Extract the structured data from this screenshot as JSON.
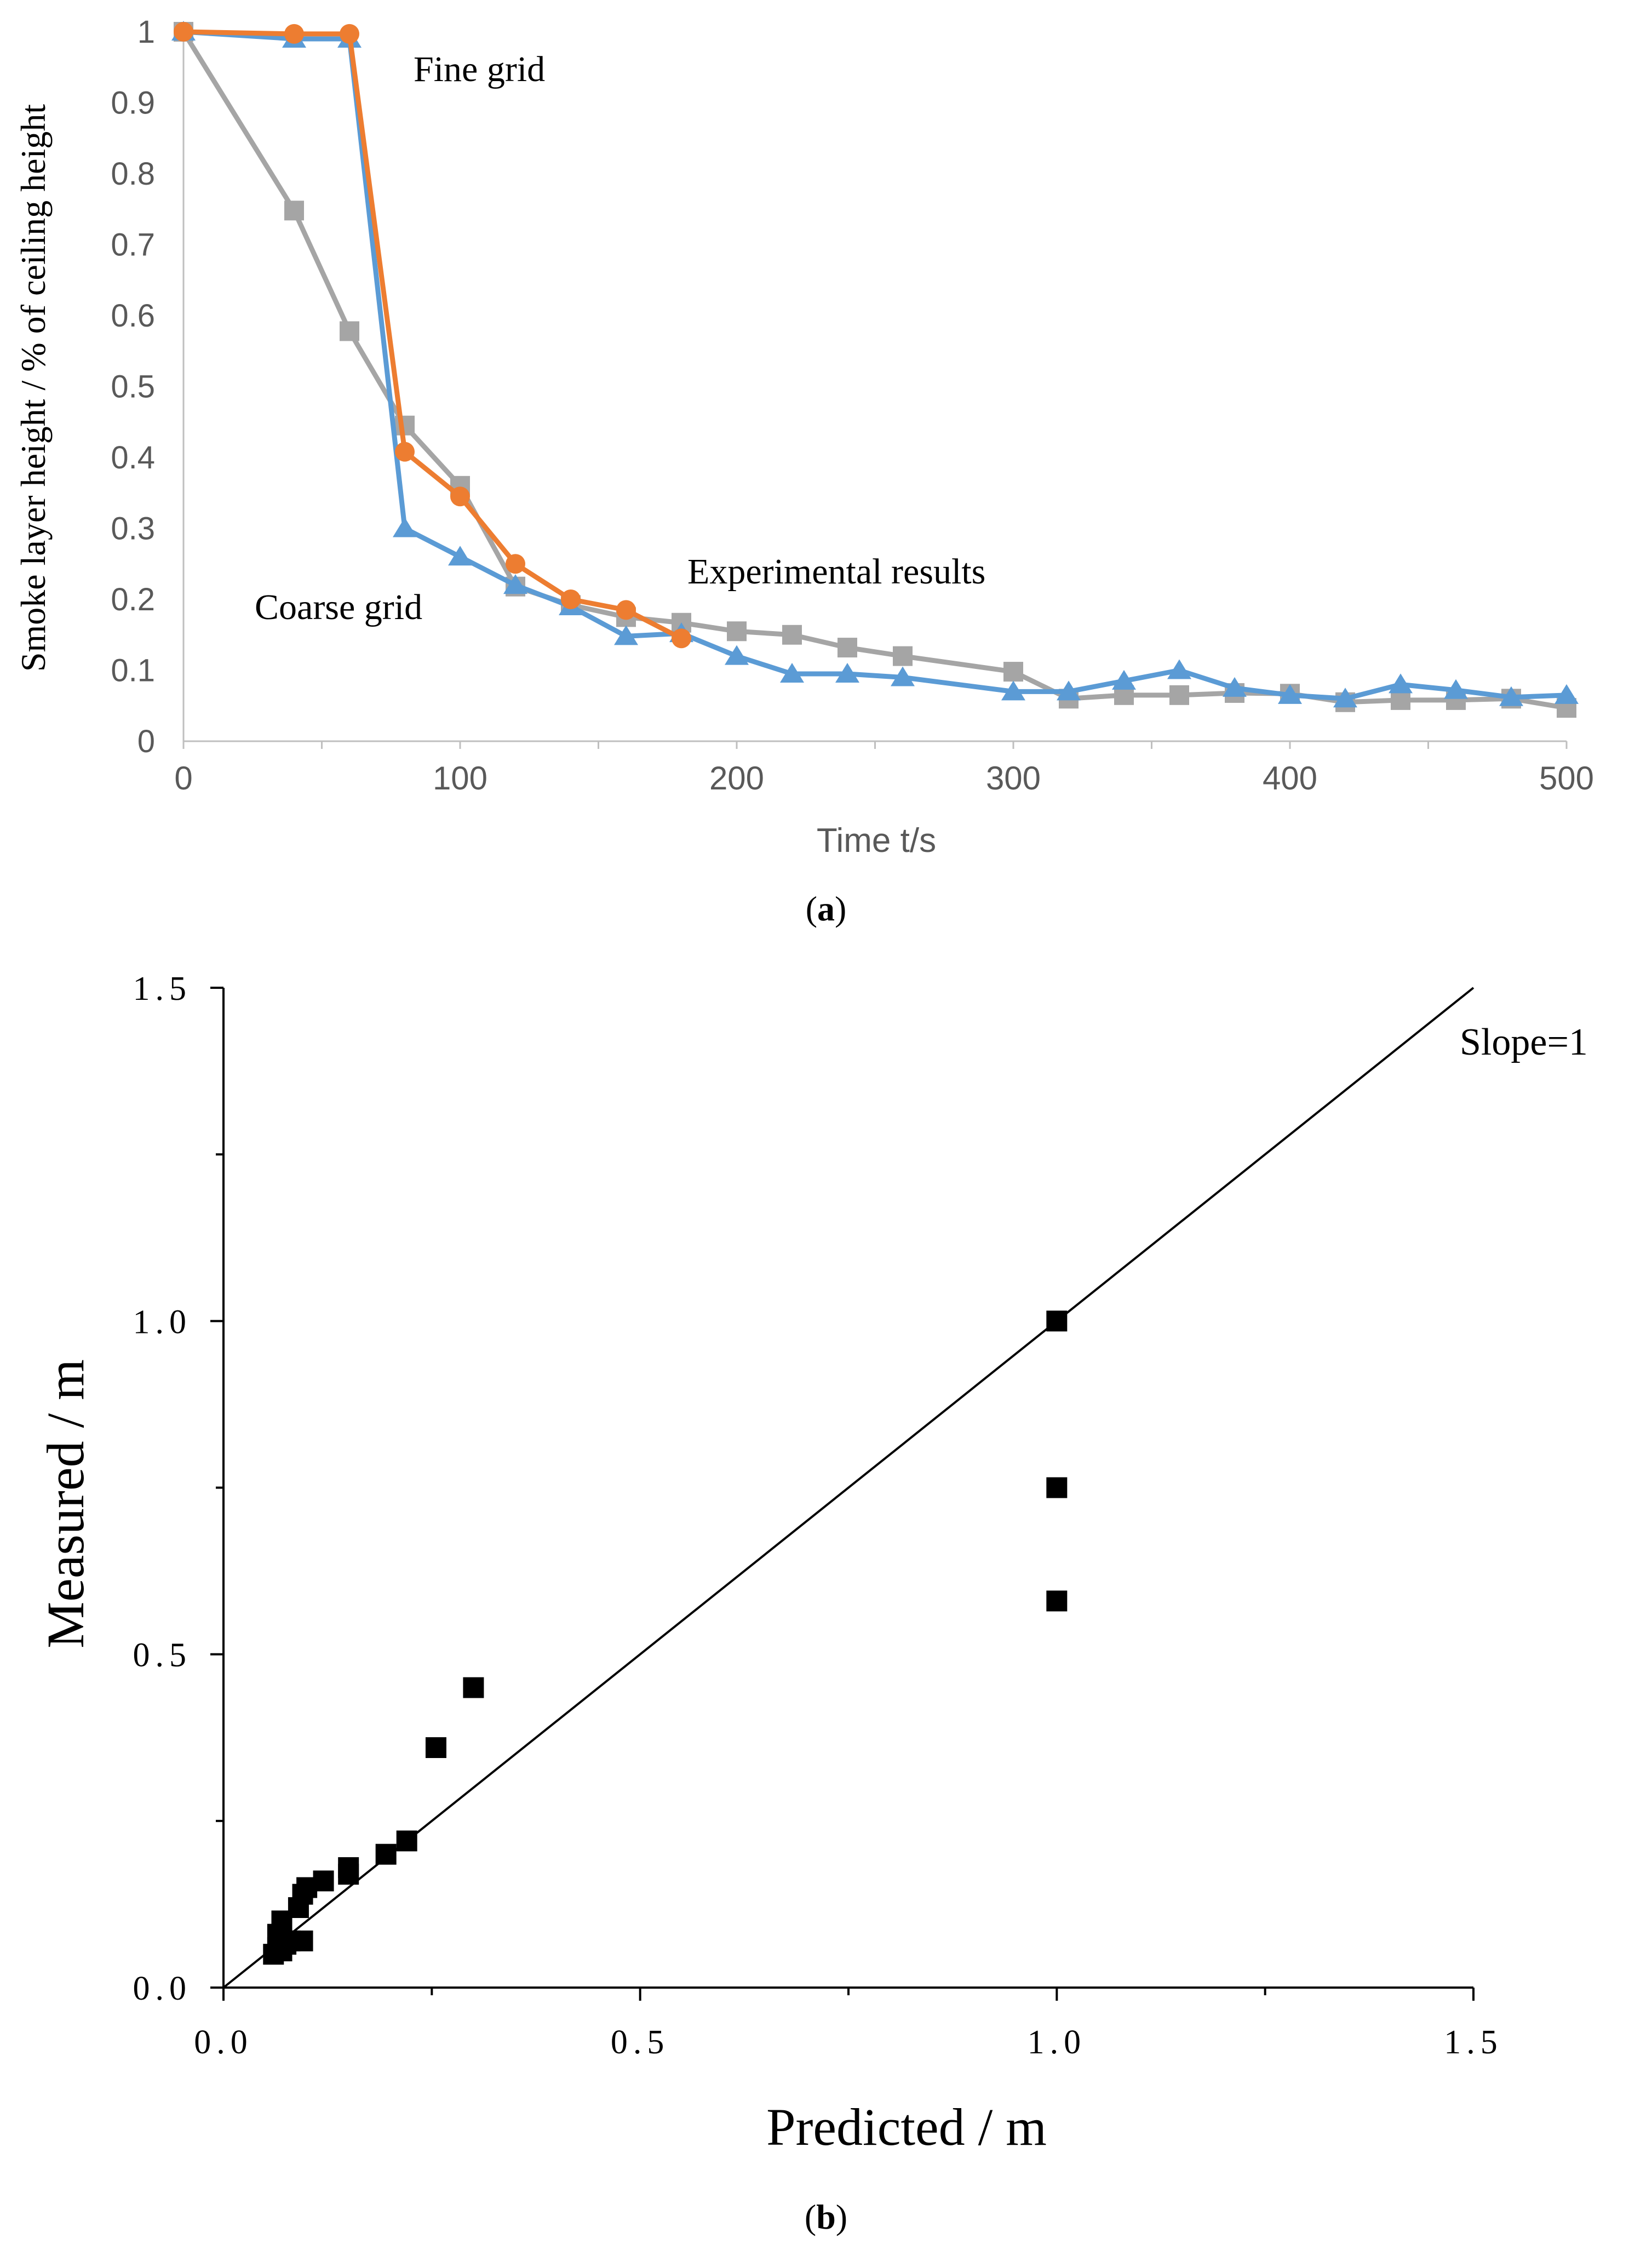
{
  "chart_data": [
    {
      "type": "line",
      "panel_label": "a",
      "xlabel": "Time t/s",
      "ylabel": "Smoke layer height / % of ceiling height",
      "xlim": [
        0,
        500
      ],
      "ylim": [
        0,
        1
      ],
      "xticks": [
        0,
        100,
        200,
        300,
        400,
        500
      ],
      "yticks": [
        0,
        0.1,
        0.2,
        0.3,
        0.4,
        0.5,
        0.6,
        0.7,
        0.8,
        0.9,
        1
      ],
      "grid": false,
      "annotations": [
        "Fine grid",
        "Coarse grid",
        "Experimental results"
      ],
      "series": [
        {
          "name": "Fine grid",
          "color": "#ED7D31",
          "marker": "circle",
          "x": [
            0,
            40,
            60,
            80,
            100,
            120,
            140,
            160,
            180
          ],
          "y": [
            1.0,
            0.997,
            0.997,
            0.408,
            0.345,
            0.25,
            0.2,
            0.185,
            0.145
          ]
        },
        {
          "name": "Coarse grid",
          "color": "#5B9BD5",
          "marker": "triangle",
          "x": [
            0,
            40,
            60,
            80,
            100,
            120,
            140,
            160,
            180,
            200,
            220,
            240,
            260,
            300,
            320,
            340,
            360,
            380,
            400,
            420,
            440,
            460,
            480,
            500
          ],
          "y": [
            1.0,
            0.99,
            0.99,
            0.3,
            0.26,
            0.22,
            0.19,
            0.148,
            0.152,
            0.12,
            0.095,
            0.095,
            0.09,
            0.07,
            0.07,
            0.085,
            0.1,
            0.075,
            0.065,
            0.06,
            0.08,
            0.072,
            0.062,
            0.065
          ]
        },
        {
          "name": "Experimental results",
          "color": "#A5A5A5",
          "marker": "square",
          "x": [
            0,
            40,
            60,
            80,
            100,
            120,
            140,
            160,
            180,
            200,
            220,
            240,
            260,
            300,
            320,
            340,
            360,
            380,
            400,
            420,
            440,
            460,
            480,
            500
          ],
          "y": [
            1.0,
            0.748,
            0.578,
            0.445,
            0.36,
            0.218,
            0.192,
            0.175,
            0.167,
            0.155,
            0.15,
            0.132,
            0.12,
            0.098,
            0.06,
            0.065,
            0.065,
            0.068,
            0.067,
            0.055,
            0.058,
            0.058,
            0.06,
            0.047
          ]
        }
      ]
    },
    {
      "type": "scatter",
      "panel_label": "b",
      "xlabel": "Predicted / m",
      "ylabel": "Measured / m",
      "xlim": [
        0,
        1.5
      ],
      "ylim": [
        0,
        1.5
      ],
      "xticks": [
        "0.0",
        "0.5",
        "1.0",
        "1.5"
      ],
      "yticks": [
        "0.0",
        "0.5",
        "1.0",
        "1.5"
      ],
      "grid": false,
      "reference_line": {
        "label": "Slope=1",
        "slope": 1
      },
      "points": {
        "x": [
          1.0,
          1.0,
          1.0,
          0.3,
          0.255,
          0.22,
          0.195,
          0.15,
          0.15,
          0.12,
          0.1,
          0.095,
          0.09,
          0.095,
          0.07,
          0.075,
          0.065,
          0.065,
          0.07,
          0.08,
          0.06
        ],
        "y": [
          1.0,
          0.75,
          0.58,
          0.45,
          0.36,
          0.22,
          0.2,
          0.18,
          0.17,
          0.16,
          0.15,
          0.14,
          0.12,
          0.07,
          0.1,
          0.065,
          0.06,
          0.08,
          0.055,
          0.07,
          0.05
        ]
      }
    }
  ]
}
